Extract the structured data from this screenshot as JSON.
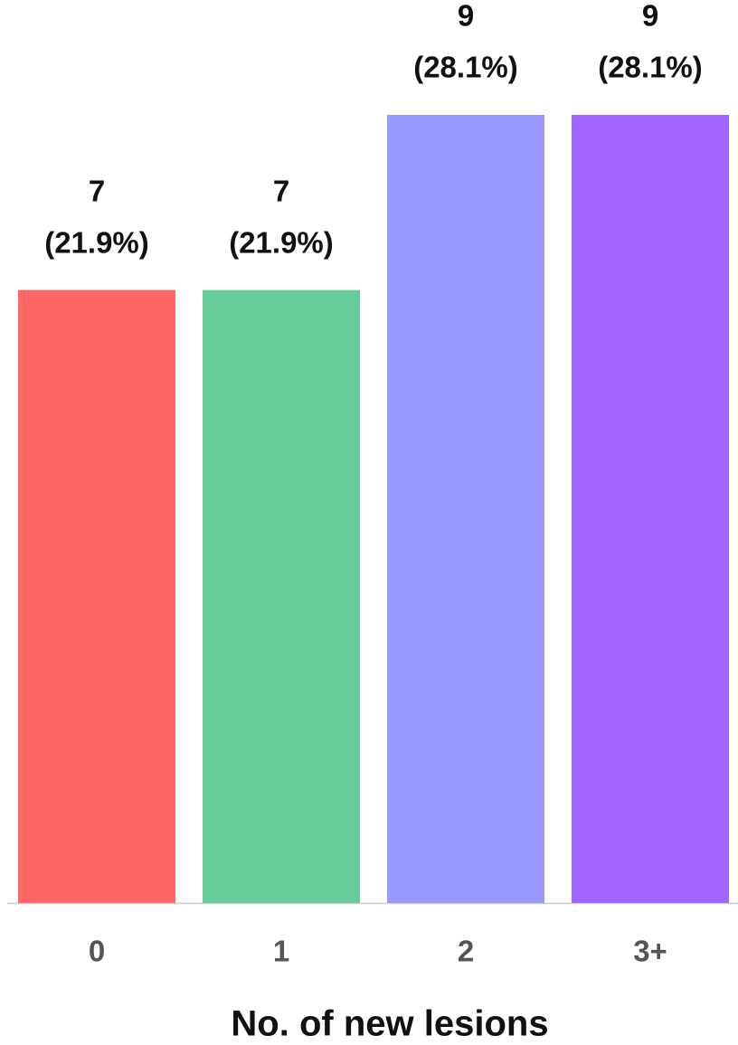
{
  "chart_data": {
    "type": "bar",
    "x_label": "No. of new lesions",
    "categories": [
      "0",
      "1",
      "2",
      "3+"
    ],
    "values": [
      7,
      7,
      9,
      9
    ],
    "percent_labels": [
      "(21.9%)",
      "(21.9%)",
      "(28.1%)",
      "(28.1%)"
    ],
    "colors": [
      "#ff6666",
      "#66cc99",
      "#9999ff",
      "#a066ff"
    ]
  }
}
